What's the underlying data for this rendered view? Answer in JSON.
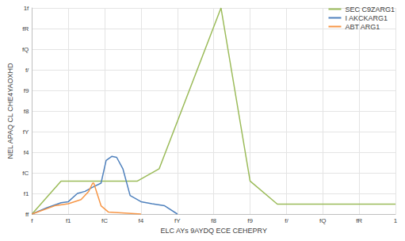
{
  "chart_data": {
    "type": "line",
    "x_label": "ELC AYs 9AYDQ ECE CEHEPRY",
    "y_label": "NEL APAQ CL CHE4YAOXHD",
    "xlim": [
      0,
      1
    ],
    "xticks": [
      {
        "value": 0,
        "label": "f"
      },
      {
        "value": 0.1,
        "label": "f1"
      },
      {
        "value": 0.2,
        "label": "fC"
      },
      {
        "value": 0.3,
        "label": "f4"
      },
      {
        "value": 0.4,
        "label": "fY"
      },
      {
        "value": 0.5,
        "label": "f8"
      },
      {
        "value": 0.6,
        "label": "f9"
      },
      {
        "value": 0.7,
        "label": "f/"
      },
      {
        "value": 0.8,
        "label": "fQ"
      },
      {
        "value": 0.9,
        "label": "fR"
      },
      {
        "value": 1,
        "label": "1"
      }
    ],
    "ylim": [
      0,
      1
    ],
    "yticks": [
      {
        "value": 0,
        "label": "ff"
      },
      {
        "value": 0.1,
        "label": "f1"
      },
      {
        "value": 0.2,
        "label": "fC"
      },
      {
        "value": 0.3,
        "label": "f4"
      },
      {
        "value": 0.4,
        "label": "fY"
      },
      {
        "value": 0.5,
        "label": "f8"
      },
      {
        "value": 0.6,
        "label": "f9"
      },
      {
        "value": 0.7,
        "label": "f/"
      },
      {
        "value": 0.8,
        "label": "fQ"
      },
      {
        "value": 0.9,
        "label": "fR"
      },
      {
        "value": 1,
        "label": "1f"
      }
    ],
    "grid": true,
    "legend": "top-right",
    "series": [
      {
        "name": "SEC C9ZARG1",
        "color": "#9bbb59",
        "x": [
          0,
          0.08,
          0.29,
          0.35,
          0.52,
          0.6,
          0.675,
          1
        ],
        "values": [
          0,
          0.16,
          0.16,
          0.22,
          1.0,
          0.16,
          0.048,
          0.048
        ]
      },
      {
        "name": "I AKCKARG1",
        "color": "#4f81bd",
        "x": [
          0,
          0.04,
          0.08,
          0.1,
          0.125,
          0.146,
          0.167,
          0.19,
          0.204,
          0.22,
          0.233,
          0.25,
          0.27,
          0.3,
          0.33,
          0.365,
          0.4
        ],
        "values": [
          0,
          0.03,
          0.055,
          0.06,
          0.1,
          0.11,
          0.13,
          0.15,
          0.26,
          0.28,
          0.275,
          0.22,
          0.09,
          0.06,
          0.05,
          0.04,
          0
        ]
      },
      {
        "name": "ABT ARG1",
        "color": "#f79646",
        "x": [
          0,
          0.0625,
          0.1,
          0.135,
          0.156,
          0.167,
          0.17,
          0.19,
          0.21,
          0.3
        ],
        "values": [
          0,
          0.04,
          0.05,
          0.07,
          0.11,
          0.15,
          0.15,
          0.04,
          0.01,
          0
        ]
      }
    ]
  }
}
